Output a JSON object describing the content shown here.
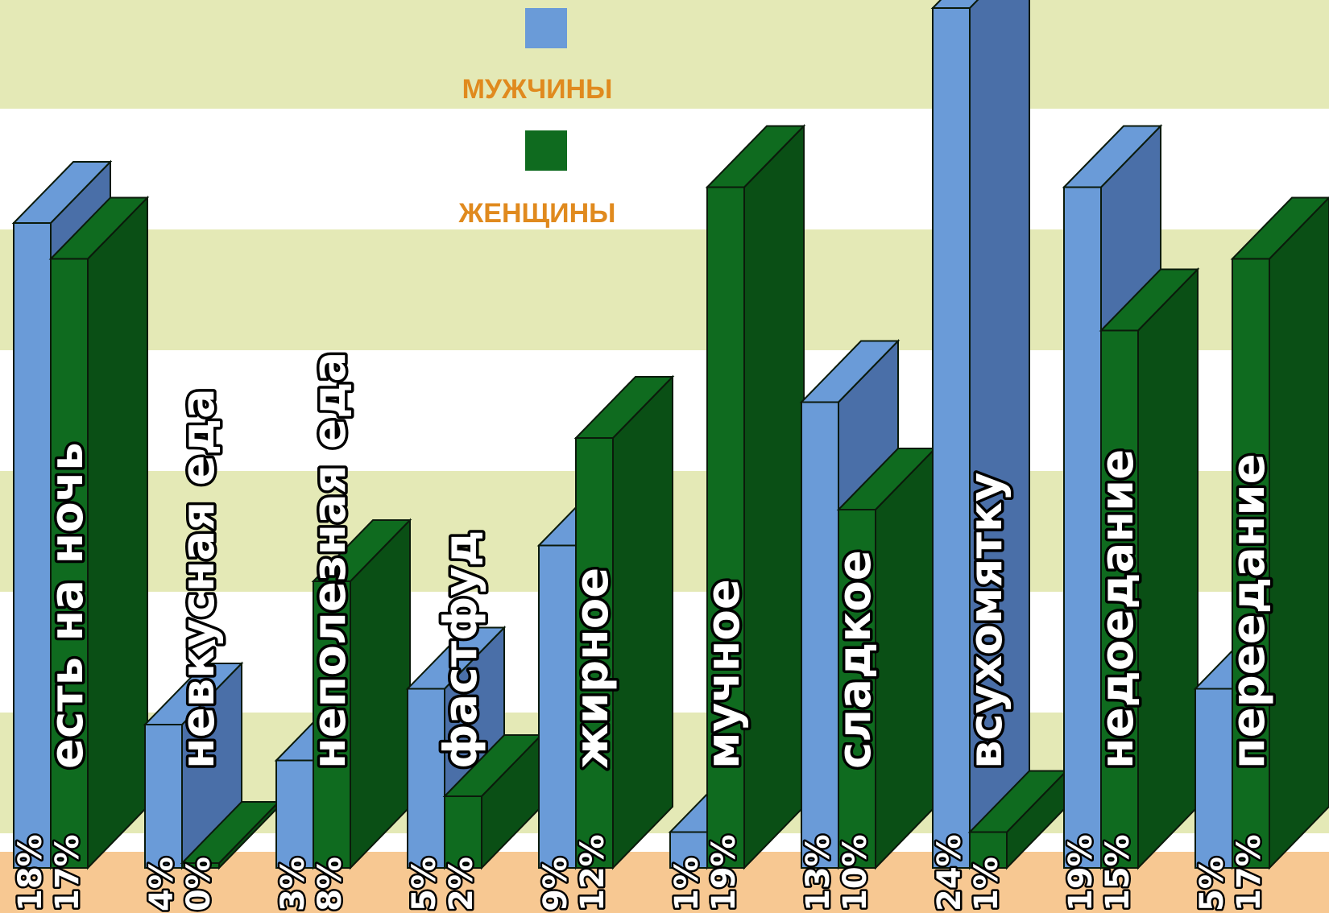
{
  "chart_data": {
    "type": "bar",
    "title": "",
    "xlabel": "",
    "ylabel": "",
    "ylim": [
      0,
      24
    ],
    "grid": "horizontal bands",
    "legend_position": "top-center",
    "categories": [
      "есть на ночь",
      "невкусная еда",
      "неполезная еда",
      "фастфуд",
      "жирное",
      "мучное",
      "сладкое",
      "всухомятку",
      "недоедание",
      "переедание"
    ],
    "series": [
      {
        "name": "МУЖЧИНЫ",
        "color": "#6a9bd8",
        "values": [
          18,
          4,
          3,
          5,
          9,
          1,
          13,
          24,
          19,
          5
        ],
        "labels": [
          "18%",
          "4%",
          "3%",
          "5%",
          "9%",
          "1%",
          "13%",
          "24%",
          "19%",
          "5%"
        ]
      },
      {
        "name": "ЖЕНЩИНЫ",
        "color": "#0f6b1f",
        "values": [
          17,
          0,
          8,
          2,
          12,
          19,
          10,
          1,
          15,
          17
        ],
        "labels": [
          "17%",
          "0%",
          "8%",
          "2%",
          "12%",
          "19%",
          "10%",
          "1%",
          "15%",
          "17%"
        ]
      }
    ],
    "colors": {
      "band_light": "#e4e9b6",
      "band_white": "#ffffff",
      "floor": "#f7c892",
      "legend_text": "#e08a1e",
      "men_side": "#4a6fa8",
      "women_side": "#0a4f15"
    }
  }
}
